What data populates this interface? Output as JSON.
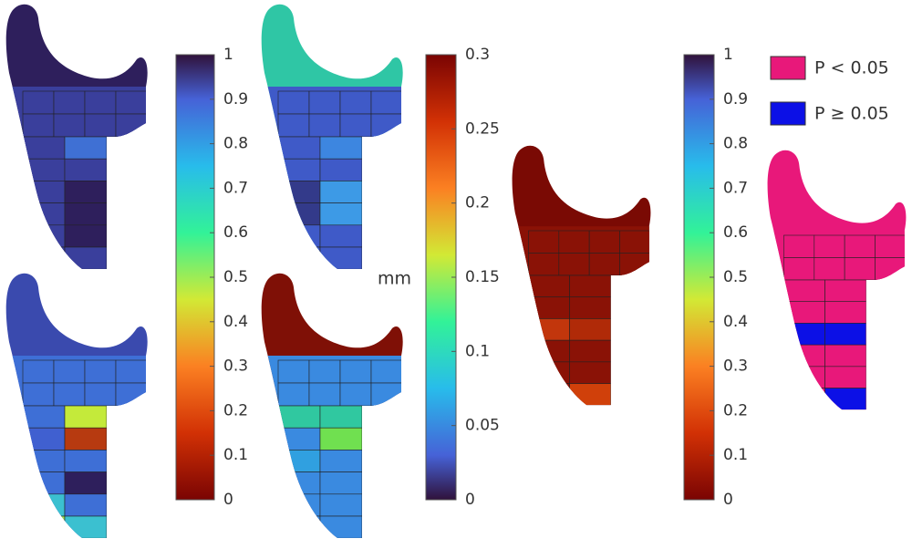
{
  "colorbars": [
    {
      "ticks": [
        "1",
        "0.9",
        "0.8",
        "0.7",
        "0.6",
        "0.5",
        "0.4",
        "0.3",
        "0.2",
        "0.1",
        "0"
      ]
    },
    {
      "label": "mm",
      "ticks": [
        "0.3",
        "0.25",
        "0.2",
        "0.15",
        "0.1",
        "0.05",
        "0"
      ]
    },
    {
      "ticks": [
        "1",
        "0.9",
        "0.8",
        "0.7",
        "0.6",
        "0.5",
        "0.4",
        "0.3",
        "0.2",
        "0.1",
        "0"
      ]
    }
  ],
  "legend": [
    {
      "label": "P < 0.05",
      "color": "#e8187a"
    },
    {
      "label": "P ≥ 0.05",
      "color": "#0c10e6"
    }
  ]
}
